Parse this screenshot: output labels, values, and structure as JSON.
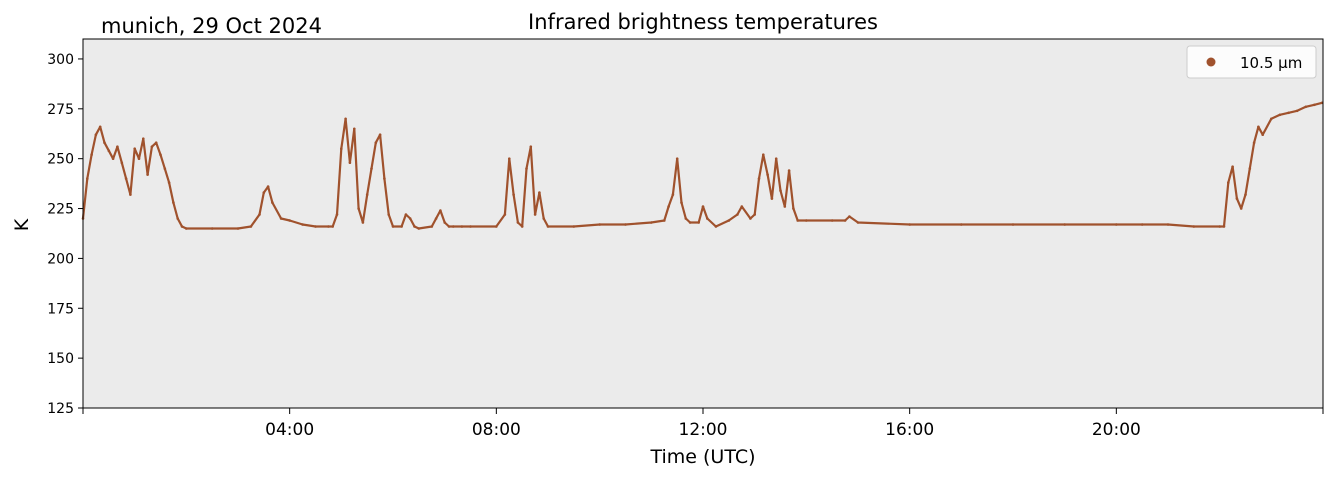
{
  "chart_data": {
    "type": "line",
    "title": "Infrared brightness temperatures",
    "subtitle": "munich, 29 Oct 2024",
    "xlabel": "Time (UTC)",
    "ylabel": "K",
    "ylim": [
      125,
      310
    ],
    "xlim": [
      "00:00",
      "24:00"
    ],
    "yticks": [
      125,
      150,
      175,
      200,
      225,
      250,
      275,
      300
    ],
    "xticks": [
      "04:00",
      "08:00",
      "12:00",
      "16:00",
      "20:00"
    ],
    "grid": false,
    "background_color": "#ebebeb",
    "legend_position": "top-right",
    "series": [
      {
        "name": "10.5 µm",
        "color": "#a0522d",
        "x": [
          "00:00",
          "00:05",
          "00:10",
          "00:15",
          "00:20",
          "00:25",
          "00:30",
          "00:35",
          "00:40",
          "00:45",
          "00:50",
          "00:55",
          "01:00",
          "01:05",
          "01:10",
          "01:15",
          "01:20",
          "01:25",
          "01:30",
          "01:35",
          "01:40",
          "01:45",
          "01:50",
          "01:55",
          "02:00",
          "02:30",
          "03:00",
          "03:15",
          "03:25",
          "03:30",
          "03:35",
          "03:40",
          "03:50",
          "04:00",
          "04:15",
          "04:30",
          "04:45",
          "04:50",
          "04:55",
          "05:00",
          "05:05",
          "05:10",
          "05:15",
          "05:20",
          "05:25",
          "05:30",
          "05:35",
          "05:40",
          "05:45",
          "05:50",
          "05:55",
          "06:00",
          "06:10",
          "06:15",
          "06:20",
          "06:25",
          "06:30",
          "06:45",
          "06:50",
          "06:55",
          "07:00",
          "07:05",
          "07:10",
          "07:20",
          "07:30",
          "08:00",
          "08:10",
          "08:15",
          "08:20",
          "08:25",
          "08:30",
          "08:35",
          "08:40",
          "08:45",
          "08:50",
          "08:55",
          "09:00",
          "09:30",
          "10:00",
          "10:30",
          "11:00",
          "11:15",
          "11:20",
          "11:25",
          "11:30",
          "11:35",
          "11:40",
          "11:45",
          "11:55",
          "12:00",
          "12:05",
          "12:15",
          "12:30",
          "12:40",
          "12:45",
          "12:55",
          "13:00",
          "13:05",
          "13:10",
          "13:15",
          "13:20",
          "13:25",
          "13:30",
          "13:35",
          "13:40",
          "13:45",
          "13:50",
          "14:00",
          "14:30",
          "14:45",
          "14:50",
          "15:00",
          "16:00",
          "17:00",
          "18:00",
          "19:00",
          "20:00",
          "20:30",
          "21:00",
          "21:30",
          "22:00",
          "22:05",
          "22:10",
          "22:15",
          "22:20",
          "22:25",
          "22:30",
          "22:35",
          "22:40",
          "22:45",
          "22:50",
          "23:00",
          "23:10",
          "23:20",
          "23:30",
          "23:40",
          "23:50",
          "23:59"
        ],
        "values": [
          220,
          240,
          252,
          262,
          266,
          258,
          254,
          250,
          256,
          248,
          240,
          232,
          255,
          250,
          260,
          242,
          256,
          258,
          252,
          245,
          238,
          228,
          220,
          216,
          215,
          215,
          215,
          216,
          222,
          233,
          236,
          228,
          220,
          219,
          217,
          216,
          216,
          216,
          222,
          255,
          270,
          248,
          265,
          225,
          218,
          232,
          245,
          258,
          262,
          240,
          222,
          216,
          216,
          222,
          220,
          216,
          215,
          216,
          220,
          224,
          218,
          216,
          216,
          216,
          216,
          216,
          222,
          250,
          232,
          218,
          216,
          245,
          256,
          222,
          233,
          220,
          216,
          216,
          217,
          217,
          218,
          219,
          226,
          232,
          250,
          228,
          220,
          218,
          218,
          226,
          220,
          216,
          219,
          222,
          226,
          220,
          222,
          240,
          252,
          242,
          230,
          250,
          234,
          226,
          244,
          225,
          219,
          219,
          219,
          219,
          221,
          218,
          217,
          217,
          217,
          217,
          217,
          217,
          217,
          216,
          216,
          216,
          238,
          246,
          230,
          225,
          232,
          245,
          258,
          266,
          262,
          270,
          272,
          273,
          274,
          276,
          277,
          278
        ]
      }
    ]
  }
}
